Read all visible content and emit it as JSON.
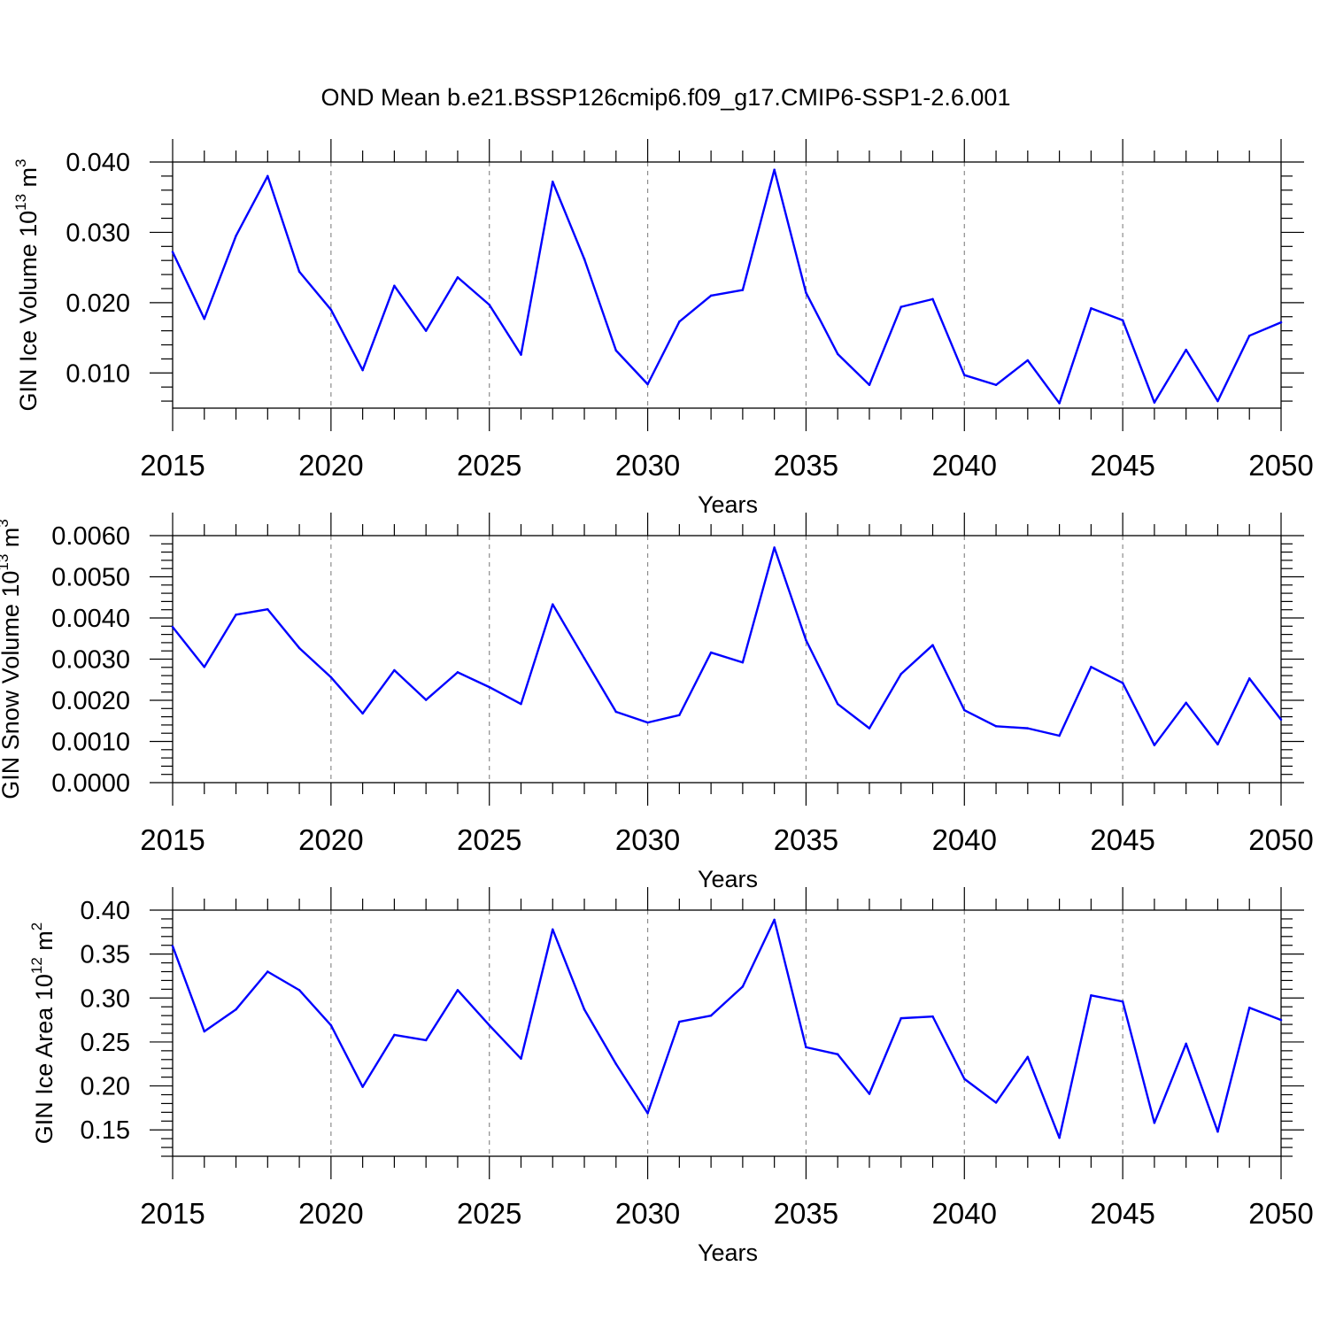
{
  "title": "OND Mean b.e21.BSSP126cmip6.f09_g17.CMIP6-SSP1-2.6.001",
  "chart_data": [
    {
      "type": "line",
      "ylabel": {
        "base": "GIN Ice Volume 10",
        "exp": "13",
        "unit": " m",
        "unit_exp": "3"
      },
      "xlabel": "Years",
      "xlim": [
        2015,
        2050
      ],
      "ylim": [
        0.005,
        0.04
      ],
      "yticks": [
        0.01,
        0.02,
        0.03,
        0.04
      ],
      "ytick_labels": [
        "0.010",
        "0.020",
        "0.030",
        "0.040"
      ],
      "xticks": [
        2015,
        2020,
        2025,
        2030,
        2035,
        2040,
        2045,
        2050
      ],
      "xtick_labels": [
        "2015",
        "2020",
        "2025",
        "2030",
        "2035",
        "2040",
        "2045",
        "2050"
      ],
      "color": "#0000ff",
      "x": [
        2015,
        2016,
        2017,
        2018,
        2019,
        2020,
        2021,
        2022,
        2023,
        2024,
        2025,
        2026,
        2027,
        2028,
        2029,
        2030,
        2031,
        2032,
        2033,
        2034,
        2035,
        2036,
        2037,
        2038,
        2039,
        2040,
        2041,
        2042,
        2043,
        2044,
        2045,
        2046,
        2047,
        2048,
        2049,
        2050
      ],
      "values": [
        0.0272,
        0.0177,
        0.0295,
        0.038,
        0.0244,
        0.019,
        0.0104,
        0.0224,
        0.016,
        0.0236,
        0.0197,
        0.0126,
        0.0372,
        0.0262,
        0.0132,
        0.0084,
        0.0173,
        0.021,
        0.0218,
        0.0389,
        0.0214,
        0.0127,
        0.0083,
        0.0194,
        0.0205,
        0.0097,
        0.0083,
        0.0118,
        0.0057,
        0.0192,
        0.0175,
        0.0058,
        0.0133,
        0.006,
        0.0153,
        0.0172
      ]
    },
    {
      "type": "line",
      "ylabel": {
        "base": "GIN Snow Volume 10",
        "exp": "13",
        "unit": " m",
        "unit_exp": "3"
      },
      "xlabel": "Years",
      "xlim": [
        2015,
        2050
      ],
      "ylim": [
        0.0,
        0.006
      ],
      "yticks": [
        0.0,
        0.001,
        0.002,
        0.003,
        0.004,
        0.005,
        0.006
      ],
      "ytick_labels": [
        "0.0000",
        "0.0010",
        "0.0020",
        "0.0030",
        "0.0040",
        "0.0050",
        "0.0060"
      ],
      "xticks": [
        2015,
        2020,
        2025,
        2030,
        2035,
        2040,
        2045,
        2050
      ],
      "xtick_labels": [
        "2015",
        "2020",
        "2025",
        "2030",
        "2035",
        "2040",
        "2045",
        "2050"
      ],
      "color": "#0000ff",
      "x": [
        2015,
        2016,
        2017,
        2018,
        2019,
        2020,
        2021,
        2022,
        2023,
        2024,
        2025,
        2026,
        2027,
        2028,
        2029,
        2030,
        2031,
        2032,
        2033,
        2034,
        2035,
        2036,
        2037,
        2038,
        2039,
        2040,
        2041,
        2042,
        2043,
        2044,
        2045,
        2046,
        2047,
        2048,
        2049,
        2050
      ],
      "values": [
        0.00378,
        0.00281,
        0.00408,
        0.00421,
        0.00327,
        0.00256,
        0.00168,
        0.00273,
        0.00201,
        0.00268,
        0.00232,
        0.00191,
        0.00433,
        0.00302,
        0.00172,
        0.00146,
        0.00164,
        0.00316,
        0.00292,
        0.00571,
        0.00346,
        0.00191,
        0.00132,
        0.00264,
        0.00334,
        0.00176,
        0.00137,
        0.00132,
        0.00114,
        0.00281,
        0.00242,
        0.00091,
        0.00194,
        0.00093,
        0.00253,
        0.00153
      ]
    },
    {
      "type": "line",
      "ylabel": {
        "base": "GIN Ice Area 10",
        "exp": "12",
        "unit": " m",
        "unit_exp": "2"
      },
      "xlabel": "Years",
      "xlim": [
        2015,
        2050
      ],
      "ylim": [
        0.12,
        0.4
      ],
      "yticks": [
        0.15,
        0.2,
        0.25,
        0.3,
        0.35,
        0.4
      ],
      "ytick_labels": [
        "0.15",
        "0.20",
        "0.25",
        "0.30",
        "0.35",
        "0.40"
      ],
      "xticks": [
        2015,
        2020,
        2025,
        2030,
        2035,
        2040,
        2045,
        2050
      ],
      "xtick_labels": [
        "2015",
        "2020",
        "2025",
        "2030",
        "2035",
        "2040",
        "2045",
        "2050"
      ],
      "color": "#0000ff",
      "x": [
        2015,
        2016,
        2017,
        2018,
        2019,
        2020,
        2021,
        2022,
        2023,
        2024,
        2025,
        2026,
        2027,
        2028,
        2029,
        2030,
        2031,
        2032,
        2033,
        2034,
        2035,
        2036,
        2037,
        2038,
        2039,
        2040,
        2041,
        2042,
        2043,
        2044,
        2045,
        2046,
        2047,
        2048,
        2049,
        2050
      ],
      "values": [
        0.359,
        0.262,
        0.287,
        0.33,
        0.309,
        0.269,
        0.199,
        0.258,
        0.252,
        0.309,
        0.269,
        0.231,
        0.378,
        0.287,
        0.225,
        0.169,
        0.273,
        0.28,
        0.313,
        0.389,
        0.244,
        0.236,
        0.191,
        0.277,
        0.279,
        0.208,
        0.181,
        0.233,
        0.141,
        0.303,
        0.296,
        0.158,
        0.248,
        0.148,
        0.289,
        0.275
      ]
    }
  ]
}
